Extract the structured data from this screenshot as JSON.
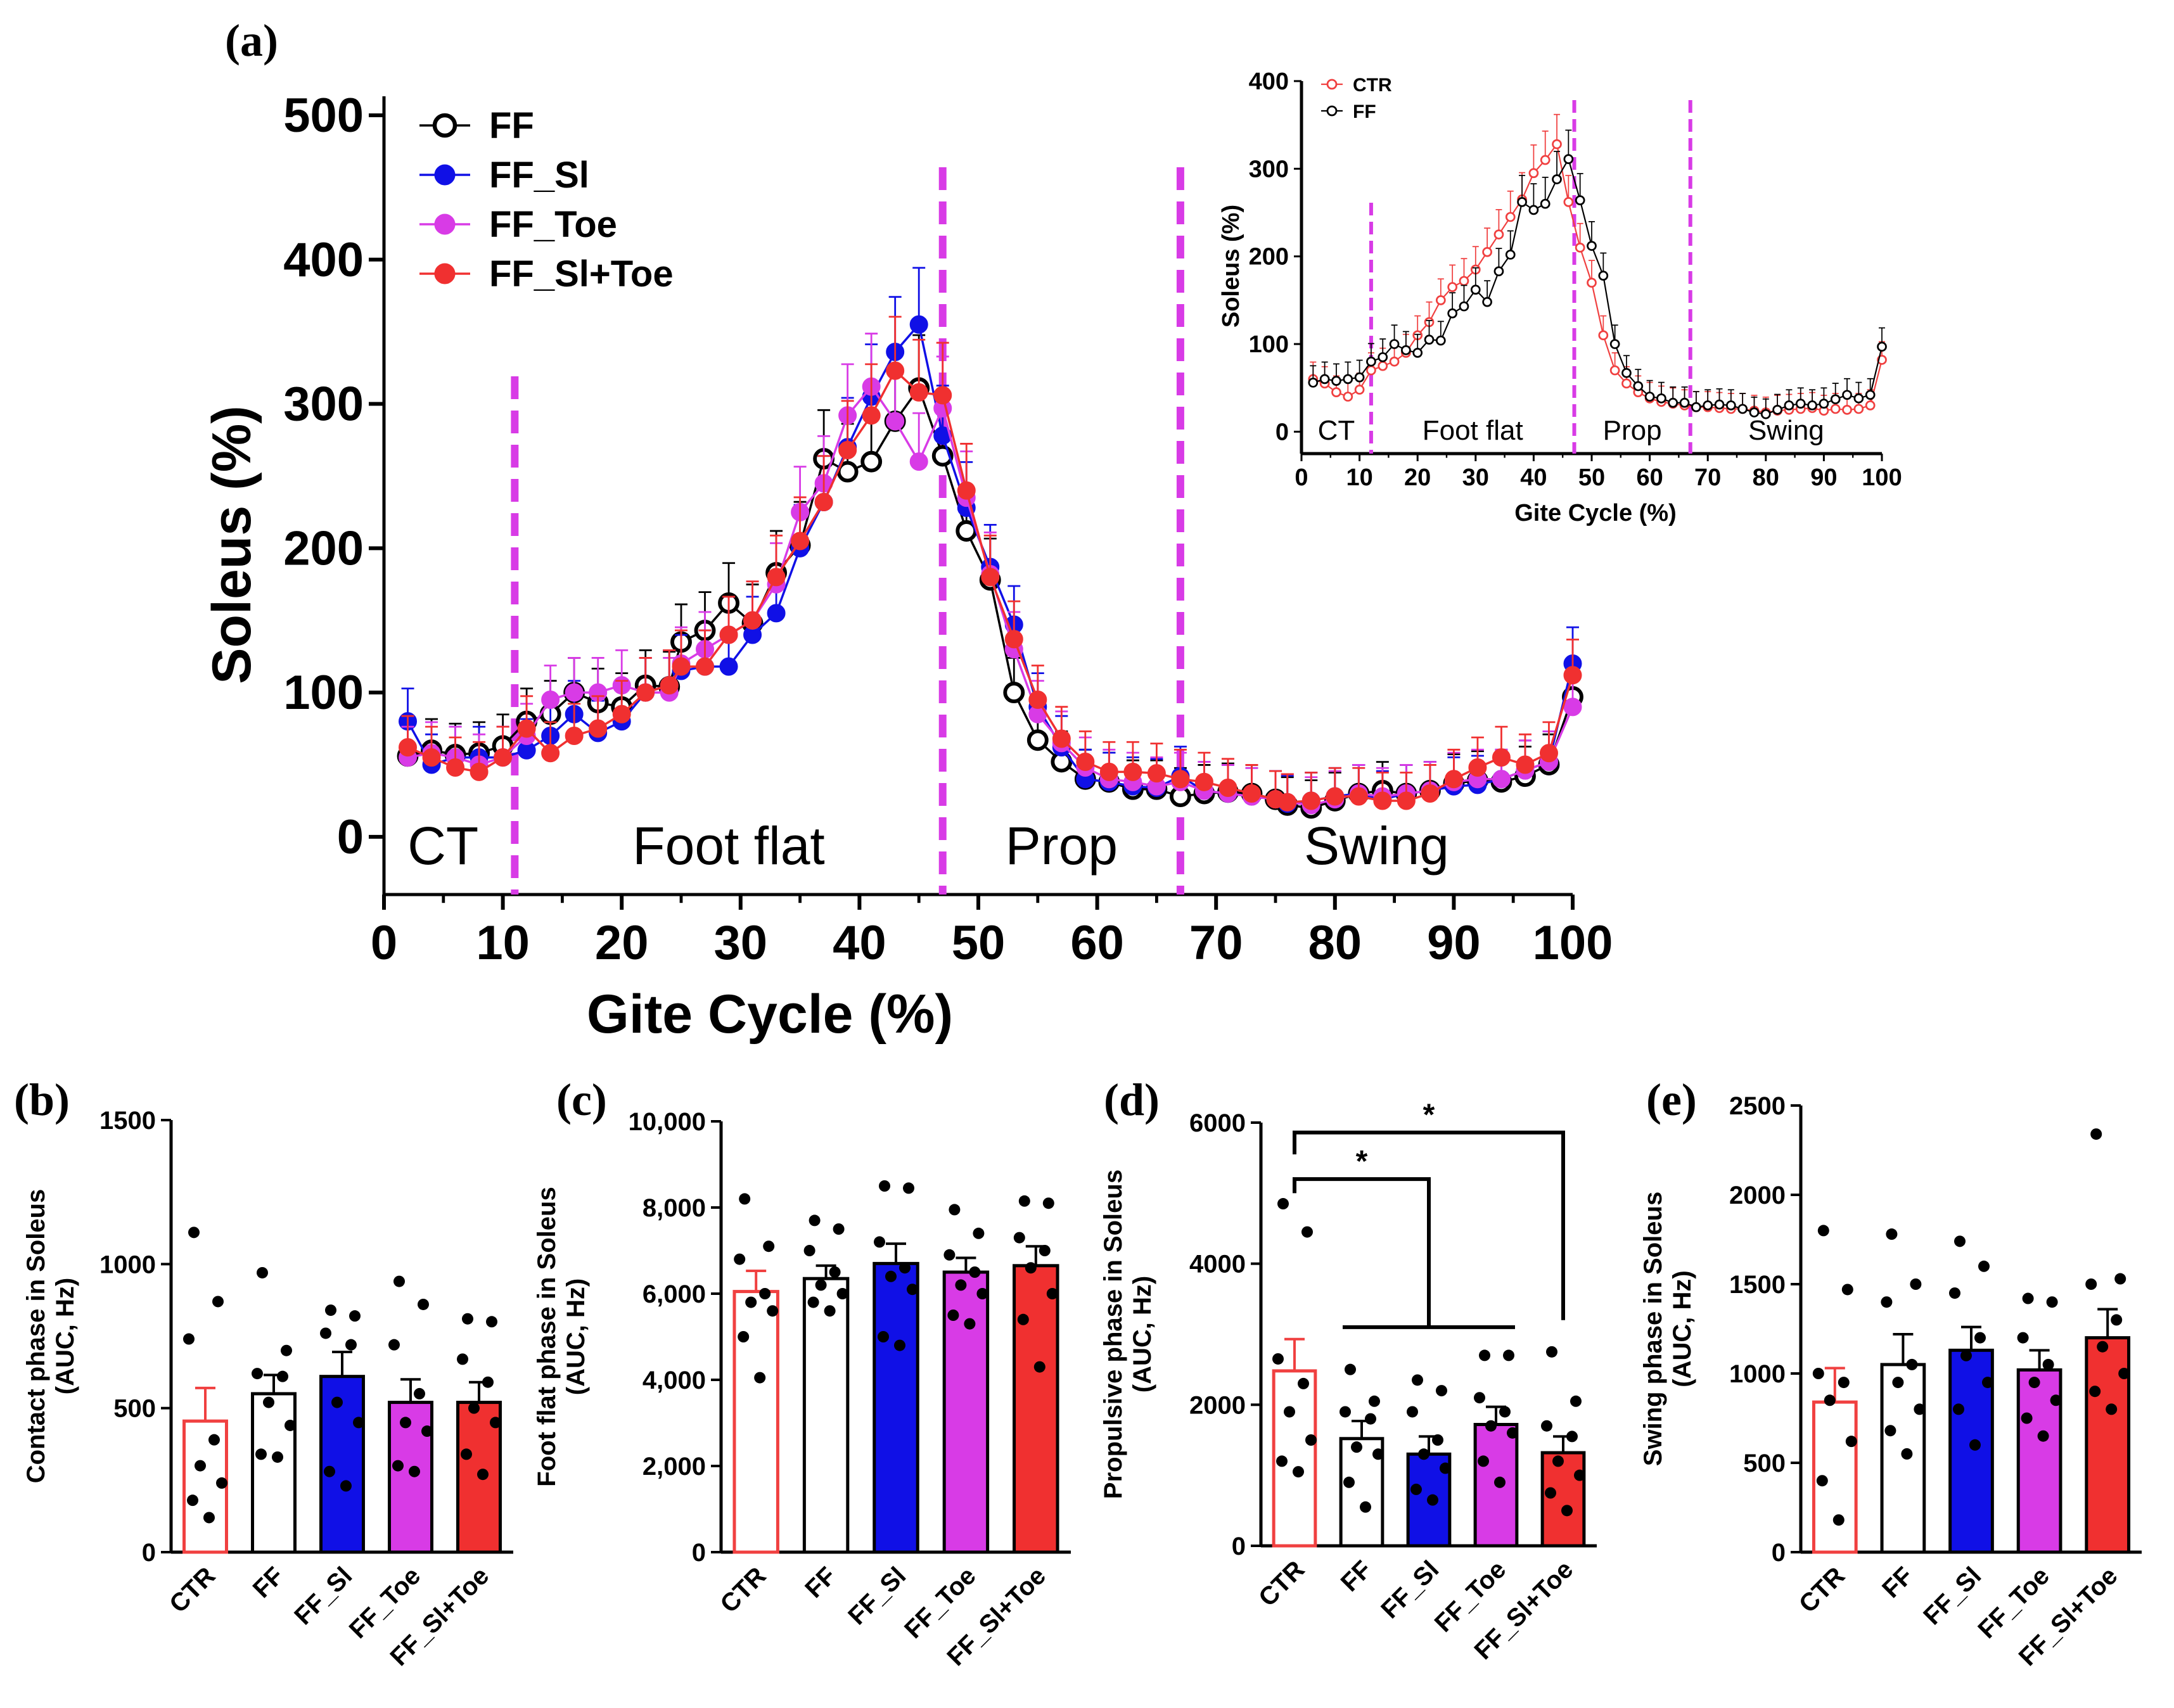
{
  "colors": {
    "FF": "#000000",
    "FF_Sl": "#1010e6",
    "FF_Toe": "#d83be6",
    "FF_Sl+Toe": "#f03030",
    "CTR": "#f04040",
    "phase_line": "#d83be6"
  },
  "panel_labels": [
    "(a)",
    "(b)",
    "(c)",
    "(d)",
    "(e)"
  ],
  "chart_data": [
    {
      "id": "a_main",
      "type": "line",
      "xlabel": "Gite Cycle (%)",
      "ylabel": "Soleus (%)",
      "xlim": [
        0,
        100
      ],
      "ylim": [
        -40,
        500
      ],
      "xticks": [
        "0",
        "10",
        "20",
        "30",
        "40",
        "50",
        "60",
        "70",
        "80",
        "90",
        "100"
      ],
      "yticks": [
        "0",
        "100",
        "200",
        "300",
        "400",
        "500"
      ],
      "phase_lines": [
        11,
        47,
        67
      ],
      "phase_labels": [
        "CT",
        "Foot flat",
        "Prop",
        "Swing"
      ],
      "legend": [
        "FF",
        "FF_Sl",
        "FF_Toe",
        "FF_Sl+Toe"
      ],
      "x": [
        2,
        4,
        6,
        8,
        10,
        12,
        14,
        16,
        18,
        20,
        22,
        24,
        25,
        27,
        29,
        31,
        33,
        35,
        37,
        39,
        41,
        43,
        45,
        47,
        49,
        51,
        53,
        55,
        57,
        59,
        61,
        63,
        65,
        67,
        69,
        71,
        73,
        75,
        76,
        78,
        80,
        82,
        84,
        86,
        88,
        90,
        92,
        94,
        96,
        98,
        100
      ],
      "series": [
        {
          "name": "FF",
          "values": [
            56,
            60,
            57,
            58,
            63,
            80,
            85,
            100,
            93,
            90,
            105,
            104,
            135,
            143,
            162,
            148,
            183,
            202,
            262,
            253,
            260,
            288,
            311,
            264,
            212,
            178,
            100,
            67,
            52,
            40,
            38,
            33,
            33,
            28,
            30,
            31,
            30,
            26,
            22,
            20,
            25,
            30,
            32,
            30,
            32,
            37,
            39,
            38,
            42,
            50,
            97
          ]
        },
        {
          "name": "FF_Sl",
          "values": [
            80,
            50,
            55,
            55,
            55,
            60,
            70,
            85,
            72,
            80,
            100,
            105,
            115,
            118,
            118,
            140,
            155,
            200,
            232,
            270,
            305,
            336,
            355,
            278,
            228,
            187,
            147,
            90,
            62,
            40,
            38,
            35,
            34,
            42,
            32,
            30,
            28,
            26,
            23,
            25,
            28,
            30,
            26,
            30,
            32,
            35,
            36,
            40,
            46,
            52,
            120
          ]
        },
        {
          "name": "FF_Toe",
          "values": [
            55,
            58,
            55,
            50,
            55,
            70,
            95,
            100,
            100,
            105,
            100,
            100,
            120,
            130,
            140,
            150,
            175,
            225,
            245,
            292,
            312,
            288,
            260,
            297,
            235,
            182,
            130,
            85,
            65,
            48,
            40,
            38,
            35,
            38,
            32,
            30,
            28,
            26,
            24,
            22,
            26,
            30,
            28,
            30,
            32,
            38,
            40,
            40,
            46,
            52,
            90
          ]
        },
        {
          "name": "FF_Sl+Toe",
          "values": [
            62,
            55,
            48,
            45,
            55,
            75,
            58,
            70,
            75,
            85,
            100,
            105,
            118,
            118,
            140,
            150,
            180,
            205,
            232,
            268,
            292,
            323,
            308,
            306,
            240,
            180,
            137,
            95,
            68,
            52,
            45,
            45,
            44,
            40,
            38,
            34,
            30,
            26,
            24,
            25,
            28,
            28,
            25,
            25,
            30,
            40,
            48,
            55,
            50,
            58,
            112
          ]
        }
      ]
    },
    {
      "id": "a_inset",
      "type": "line",
      "xlabel": "Gite Cycle (%)",
      "ylabel": "Soleus (%)",
      "xlim": [
        0,
        100
      ],
      "ylim": [
        -25,
        400
      ],
      "xticks": [
        "0",
        "10",
        "20",
        "30",
        "40",
        "50",
        "60",
        "70",
        "80",
        "90",
        "100"
      ],
      "yticks": [
        "0",
        "100",
        "200",
        "300",
        "400"
      ],
      "phase_lines": [
        12,
        47,
        67
      ],
      "phase_labels": [
        "CT",
        "Foot flat",
        "Prop",
        "Swing"
      ],
      "legend": [
        "CTR",
        "FF"
      ],
      "x": [
        2,
        4,
        6,
        8,
        10,
        12,
        14,
        16,
        18,
        20,
        22,
        24,
        26,
        28,
        30,
        32,
        34,
        36,
        38,
        40,
        42,
        44,
        46,
        48,
        50,
        52,
        54,
        56,
        58,
        60,
        62,
        64,
        66,
        68,
        70,
        72,
        74,
        76,
        78,
        80,
        82,
        84,
        86,
        88,
        90,
        92,
        94,
        96,
        98,
        100
      ],
      "series": [
        {
          "name": "CTR",
          "values": [
            60,
            55,
            45,
            40,
            48,
            70,
            75,
            80,
            90,
            110,
            125,
            150,
            165,
            172,
            185,
            205,
            225,
            245,
            265,
            295,
            310,
            328,
            262,
            210,
            170,
            110,
            70,
            55,
            45,
            38,
            34,
            32,
            30,
            28,
            28,
            27,
            26,
            26,
            24,
            22,
            24,
            25,
            26,
            27,
            24,
            26,
            25,
            26,
            30,
            82
          ]
        },
        {
          "name": "FF",
          "values": [
            56,
            60,
            58,
            60,
            62,
            80,
            85,
            100,
            93,
            90,
            105,
            104,
            135,
            143,
            162,
            148,
            183,
            202,
            262,
            253,
            260,
            288,
            311,
            264,
            212,
            178,
            100,
            67,
            52,
            40,
            38,
            33,
            33,
            28,
            30,
            31,
            30,
            26,
            22,
            20,
            25,
            30,
            32,
            30,
            32,
            37,
            42,
            38,
            42,
            97
          ]
        }
      ]
    },
    {
      "id": "b",
      "type": "bar",
      "ylabel": "Contact phase in Soleus (AUC, Hz)",
      "ylim": [
        0,
        1500
      ],
      "yticks": [
        "0",
        "500",
        "1000",
        "1500"
      ],
      "categories": [
        "CTR",
        "FF",
        "FF_Sl",
        "FF_Toe",
        "FF_Sl+Toe"
      ],
      "values": [
        455,
        550,
        610,
        520,
        520
      ],
      "errors": [
        115,
        65,
        85,
        80,
        70
      ],
      "points": [
        [
          1110,
          870,
          740,
          390,
          300,
          240,
          180,
          120
        ],
        [
          970,
          700,
          620,
          610,
          520,
          440,
          340,
          330
        ],
        [
          840,
          820,
          760,
          720,
          520,
          450,
          280,
          230
        ],
        [
          940,
          860,
          720,
          550,
          450,
          420,
          300,
          280
        ],
        [
          810,
          800,
          670,
          590,
          500,
          450,
          340,
          270
        ]
      ],
      "significance": []
    },
    {
      "id": "c",
      "type": "bar",
      "ylabel": "Foot flat phase in Soleus (AUC, Hz)",
      "ylim": [
        0,
        10000
      ],
      "yticks": [
        "0",
        "2,000",
        "4,000",
        "6,000",
        "8,000",
        "10,000"
      ],
      "categories": [
        "CTR",
        "FF",
        "FF_Sl",
        "FF_Toe",
        "FF_Sl+Toe"
      ],
      "values": [
        6050,
        6350,
        6700,
        6500,
        6650
      ],
      "errors": [
        480,
        300,
        460,
        330,
        450
      ],
      "points": [
        [
          8200,
          7100,
          6800,
          6000,
          5800,
          5600,
          5000,
          4050
        ],
        [
          7700,
          7500,
          7000,
          6500,
          6200,
          6000,
          5800,
          5600
        ],
        [
          8500,
          8450,
          7200,
          6600,
          6400,
          6100,
          5000,
          4800
        ],
        [
          7950,
          7400,
          6900,
          6500,
          6200,
          6000,
          5500,
          5300
        ],
        [
          8150,
          8100,
          7300,
          7000,
          6600,
          6000,
          5400,
          4300
        ]
      ],
      "significance": []
    },
    {
      "id": "d",
      "type": "bar",
      "ylabel": "Propulsive phase in Soleus (AUC, Hz)",
      "ylim": [
        0,
        6000
      ],
      "yticks": [
        "0",
        "2000",
        "4000",
        "6000"
      ],
      "categories": [
        "CTR",
        "FF",
        "FF_Sl",
        "FF_Toe",
        "FF_Sl+Toe"
      ],
      "values": [
        2480,
        1520,
        1300,
        1720,
        1320
      ],
      "errors": [
        450,
        250,
        250,
        250,
        230
      ],
      "points": [
        [
          4850,
          4450,
          2650,
          2300,
          1900,
          1500,
          1200,
          1050
        ],
        [
          2500,
          2050,
          1900,
          1800,
          1400,
          1300,
          900,
          550
        ],
        [
          2350,
          2200,
          1900,
          1500,
          1300,
          1100,
          800,
          650
        ],
        [
          2700,
          2700,
          2100,
          1900,
          1700,
          1600,
          1200,
          900
        ],
        [
          2750,
          2050,
          1700,
          1550,
          1200,
          1000,
          750,
          500
        ]
      ],
      "significance": [
        {
          "from": "CTR",
          "to": "FF … FF_Toe",
          "label": "*"
        },
        {
          "from": "CTR",
          "to": "FF_Sl+Toe",
          "label": "*"
        }
      ]
    },
    {
      "id": "e",
      "type": "bar",
      "ylabel": "Swing phase in Soleus (AUC, Hz)",
      "ylim": [
        0,
        2500
      ],
      "yticks": [
        "0",
        "500",
        "1000",
        "1500",
        "2000",
        "2500"
      ],
      "categories": [
        "CTR",
        "FF",
        "FF_Sl",
        "FF_Toe",
        "FF_Sl+Toe"
      ],
      "values": [
        840,
        1050,
        1130,
        1020,
        1200
      ],
      "errors": [
        190,
        170,
        130,
        110,
        160
      ],
      "points": [
        [
          1800,
          1470,
          1000,
          950,
          850,
          620,
          400,
          180
        ],
        [
          1780,
          1500,
          1400,
          1050,
          950,
          800,
          680,
          550
        ],
        [
          1740,
          1600,
          1450,
          1200,
          1100,
          950,
          800,
          600
        ],
        [
          1420,
          1400,
          1200,
          1050,
          950,
          850,
          750,
          650
        ],
        [
          2340,
          1530,
          1500,
          1300,
          1150,
          1000,
          900,
          800
        ]
      ],
      "significance": []
    }
  ]
}
